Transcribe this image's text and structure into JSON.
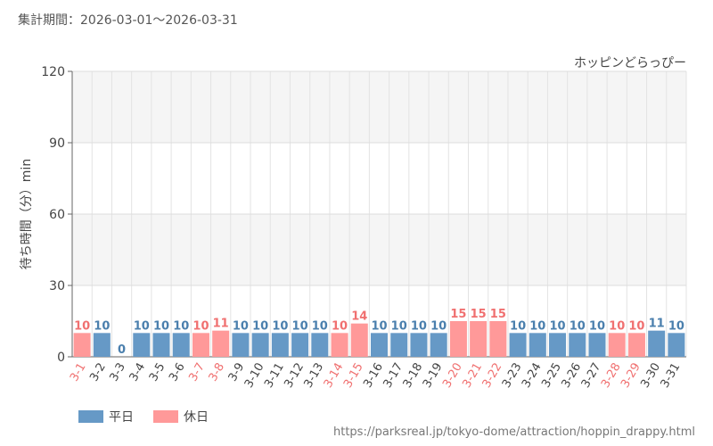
{
  "period_text": "集計期間：2026-03-01～2026-03-31",
  "footer_url": "https://parksreal.jp/tokyo-dome/attraction/hoppin_drappy.html",
  "legend": [
    {
      "label": "平日",
      "color": "#6699c6"
    },
    {
      "label": "休日",
      "color": "#ff9999"
    }
  ],
  "colors": {
    "weekday": "#6699c6",
    "holiday": "#ff9999",
    "weekday_text": "#4a7fad",
    "holiday_text": "#f07070"
  },
  "chart_data": {
    "type": "bar",
    "title": "ホッピンどらっぴー",
    "ylabel": "待ち時間（分）min",
    "xlabel": "",
    "ylim": [
      0,
      120
    ],
    "yticks": [
      0,
      30,
      60,
      90,
      120
    ],
    "grid": true,
    "categories": [
      "3-1",
      "3-2",
      "3-3",
      "3-4",
      "3-5",
      "3-6",
      "3-7",
      "3-8",
      "3-9",
      "3-10",
      "3-11",
      "3-12",
      "3-13",
      "3-14",
      "3-15",
      "3-16",
      "3-17",
      "3-18",
      "3-19",
      "3-20",
      "3-21",
      "3-22",
      "3-23",
      "3-24",
      "3-25",
      "3-26",
      "3-27",
      "3-28",
      "3-29",
      "3-30",
      "3-31"
    ],
    "values": [
      10,
      10,
      0,
      10,
      10,
      10,
      10,
      11,
      10,
      10,
      10,
      10,
      10,
      10,
      14,
      10,
      10,
      10,
      10,
      15,
      15,
      15,
      10,
      10,
      10,
      10,
      10,
      10,
      10,
      11,
      10
    ],
    "day_type": [
      "休日",
      "平日",
      "平日",
      "平日",
      "平日",
      "平日",
      "休日",
      "休日",
      "平日",
      "平日",
      "平日",
      "平日",
      "平日",
      "休日",
      "休日",
      "平日",
      "平日",
      "平日",
      "平日",
      "休日",
      "休日",
      "休日",
      "平日",
      "平日",
      "平日",
      "平日",
      "平日",
      "休日",
      "休日",
      "平日",
      "平日"
    ]
  }
}
